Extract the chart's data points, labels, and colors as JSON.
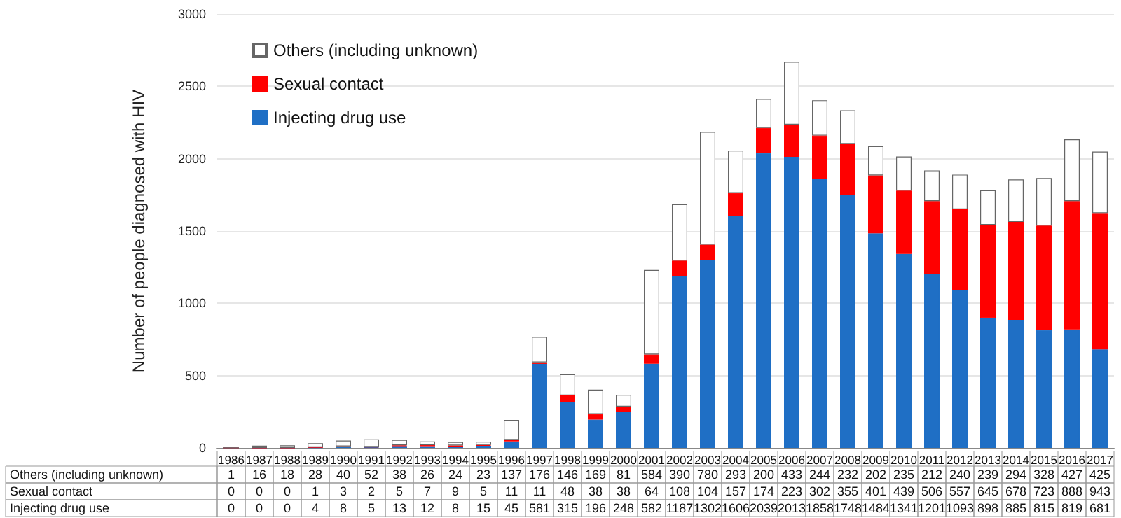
{
  "chart_data": {
    "type": "bar",
    "stacked": true,
    "ylabel": "Number of people diagnosed with HIV",
    "categories": [
      "1986",
      "1987",
      "1988",
      "1989",
      "1990",
      "1991",
      "1992",
      "1993",
      "1994",
      "1995",
      "1996",
      "1997",
      "1998",
      "1999",
      "2000",
      "2001",
      "2002",
      "2003",
      "2004",
      "2005",
      "2006",
      "2007",
      "2008",
      "2009",
      "2010",
      "2011",
      "2012",
      "2013",
      "2014",
      "2015",
      "2016",
      "2017"
    ],
    "series": [
      {
        "name": "Injecting drug use",
        "color": "#1f6fc5",
        "values": [
          0,
          0,
          0,
          4,
          8,
          5,
          13,
          12,
          8,
          15,
          45,
          581,
          315,
          196,
          248,
          582,
          1187,
          1302,
          1606,
          2039,
          2013,
          1858,
          1748,
          1484,
          1341,
          1201,
          1093,
          898,
          885,
          815,
          819,
          681
        ]
      },
      {
        "name": "Sexual contact",
        "color": "#ff0000",
        "values": [
          0,
          0,
          0,
          1,
          3,
          2,
          5,
          7,
          9,
          5,
          11,
          11,
          48,
          38,
          38,
          64,
          108,
          104,
          157,
          174,
          223,
          302,
          355,
          401,
          439,
          506,
          557,
          645,
          678,
          723,
          888,
          943
        ]
      },
      {
        "name": "Others (including unknown)",
        "color": "#ffffff",
        "values": [
          1,
          16,
          18,
          28,
          40,
          52,
          38,
          26,
          24,
          23,
          137,
          176,
          146,
          169,
          81,
          584,
          390,
          780,
          293,
          200,
          433,
          244,
          232,
          202,
          235,
          212,
          240,
          239,
          294,
          328,
          427,
          425
        ]
      }
    ],
    "ylim": [
      0,
      3000
    ],
    "yticks": [
      0,
      500,
      1000,
      1500,
      2000,
      2500,
      3000
    ],
    "grid": "y",
    "legend": "top left",
    "data_labels": true
  }
}
